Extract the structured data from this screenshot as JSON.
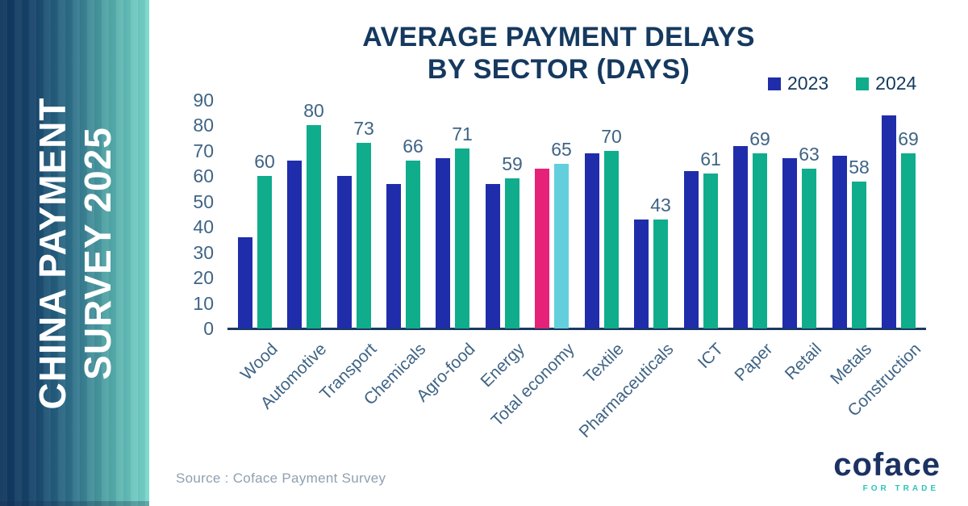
{
  "sidebar": {
    "line1": "CHINA PAYMENT",
    "line2": "SURVEY 2025"
  },
  "header": {
    "title_line1": "AVERAGE PAYMENT DELAYS",
    "title_line2": "BY SECTOR (DAYS)"
  },
  "footer": {
    "source": "Source : Coface Payment Survey",
    "logo_text": "coface",
    "logo_tagline": "FOR TRADE"
  },
  "colors": {
    "title_navy": "#15395F",
    "axis_labels": "#3F6485",
    "axis_line": "#1B3A5F",
    "bar_2023": "#1F2DAB",
    "bar_2024": "#10AD8C",
    "highlight_2023": "#E52277",
    "highlight_2024": "#63CFDC",
    "sidebar_gradient_start": "#0F355C",
    "sidebar_gradient_end": "#7CD9CD"
  },
  "chart_data": {
    "type": "bar",
    "title": "AVERAGE PAYMENT DELAYS BY SECTOR (DAYS)",
    "categories": [
      "Wood",
      "Automotive",
      "Transport",
      "Chemicals",
      "Agro-food",
      "Energy",
      "Total economy",
      "Textile",
      "Pharmaceuticals",
      "ICT",
      "Paper",
      "Retail",
      "Metals",
      "Construction"
    ],
    "series": [
      {
        "name": "2023",
        "color": "#1F2DAB",
        "show_value_labels": false,
        "values": [
          36,
          66,
          60,
          57,
          67,
          57,
          63,
          69,
          43,
          62,
          72,
          67,
          68,
          84
        ]
      },
      {
        "name": "2024",
        "color": "#10AD8C",
        "show_value_labels": true,
        "values": [
          60,
          80,
          73,
          66,
          71,
          59,
          65,
          70,
          43,
          61,
          69,
          63,
          58,
          69
        ]
      }
    ],
    "highlight": {
      "category": "Total economy",
      "colors": [
        "#E52277",
        "#63CFDC"
      ]
    },
    "ylim": [
      0,
      90
    ],
    "yticks": [
      0,
      10,
      20,
      30,
      40,
      50,
      60,
      70,
      80,
      90
    ],
    "grid": false,
    "legend_position": "top-right",
    "xlabel": "",
    "ylabel": ""
  }
}
